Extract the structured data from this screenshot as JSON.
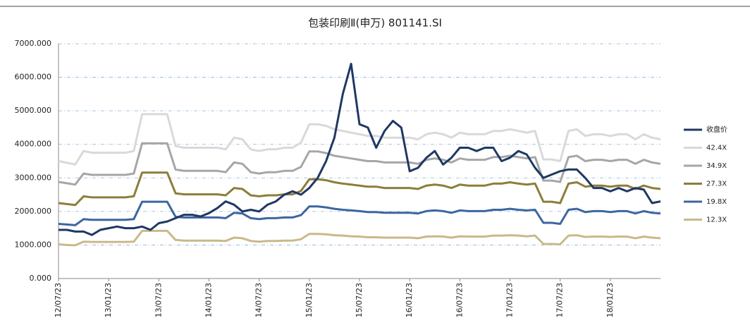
{
  "chart_data": {
    "type": "line",
    "title": "包装印刷Ⅱ(申万) 801141.SI",
    "x": [
      "12/07/23",
      "12/08/23",
      "12/09/23",
      "12/10/23",
      "12/11/23",
      "12/12/23",
      "13/01/23",
      "13/02/23",
      "13/03/23",
      "13/04/23",
      "13/05/23",
      "13/06/23",
      "13/07/23",
      "13/08/23",
      "13/09/23",
      "13/10/23",
      "13/11/23",
      "13/12/23",
      "14/01/23",
      "14/02/23",
      "14/03/23",
      "14/04/23",
      "14/05/23",
      "14/06/23",
      "14/07/23",
      "14/08/23",
      "14/09/23",
      "14/10/23",
      "14/11/23",
      "14/12/23",
      "15/01/23",
      "15/02/23",
      "15/03/23",
      "15/04/23",
      "15/05/23",
      "15/06/23",
      "15/07/23",
      "15/08/23",
      "15/09/23",
      "15/10/23",
      "15/11/23",
      "15/12/23",
      "16/01/23",
      "16/02/23",
      "16/03/23",
      "16/04/23",
      "16/05/23",
      "16/06/23",
      "16/07/23",
      "16/08/23",
      "16/09/23",
      "16/10/23",
      "16/11/23",
      "16/12/23",
      "17/01/23",
      "17/02/23",
      "17/03/23",
      "17/04/23",
      "17/05/23",
      "17/06/23",
      "17/07/23",
      "17/08/23",
      "17/09/23",
      "17/10/23",
      "17/11/23",
      "17/12/23",
      "18/01/23",
      "18/02/23",
      "18/03/23",
      "18/04/23",
      "18/05/23",
      "18/06/23",
      "18/07/23"
    ],
    "xlim": [
      "12/07/23",
      "18/07/23"
    ],
    "xticks": [
      "12/07/23",
      "13/01/23",
      "13/07/23",
      "14/01/23",
      "14/07/23",
      "15/01/23",
      "15/07/23",
      "16/01/23",
      "16/07/23",
      "17/01/23",
      "17/07/23",
      "18/01/23"
    ],
    "ylim": [
      0,
      7000
    ],
    "yticks": [
      {
        "value": 0,
        "label": "0.000"
      },
      {
        "value": 1000,
        "label": "1000.000"
      },
      {
        "value": 2000,
        "label": "2000.000"
      },
      {
        "value": 3000,
        "label": "3000.000"
      },
      {
        "value": 4000,
        "label": "4000.000"
      },
      {
        "value": 5000,
        "label": "5000.000"
      },
      {
        "value": 6000,
        "label": "6000.000"
      },
      {
        "value": 7000,
        "label": "7000.000"
      }
    ],
    "grid": true,
    "legend": "right",
    "series": [
      {
        "name": "收盘价",
        "color": "#1f3864",
        "values": [
          1450,
          1450,
          1400,
          1400,
          1300,
          1450,
          1500,
          1550,
          1500,
          1500,
          1550,
          1450,
          1650,
          1700,
          1800,
          1900,
          1900,
          1850,
          1950,
          2100,
          2300,
          2200,
          2000,
          2050,
          2000,
          2200,
          2300,
          2500,
          2600,
          2500,
          2700,
          3000,
          3500,
          4200,
          5500,
          6400,
          4600,
          4500,
          3900,
          4400,
          4700,
          4500,
          3200,
          3300,
          3600,
          3800,
          3400,
          3600,
          3900,
          3900,
          3800,
          3900,
          3900,
          3500,
          3600,
          3800,
          3700,
          3300,
          3000,
          3100,
          3200,
          3250,
          3250,
          3000,
          2700,
          2700,
          2600,
          2700,
          2600,
          2700,
          2650,
          2250,
          2300
        ]
      },
      {
        "name": "42.4X",
        "color": "#d9d9d9",
        "values": [
          3500,
          3450,
          3400,
          3800,
          3750,
          3750,
          3750,
          3750,
          3750,
          3800,
          4900,
          4900,
          4900,
          4900,
          3950,
          3900,
          3900,
          3900,
          3900,
          3900,
          3850,
          4200,
          4150,
          3850,
          3800,
          3850,
          3850,
          3900,
          3900,
          4050,
          4600,
          4600,
          4550,
          4450,
          4400,
          4350,
          4300,
          4250,
          4250,
          4200,
          4200,
          4200,
          4200,
          4150,
          4300,
          4350,
          4300,
          4200,
          4350,
          4300,
          4300,
          4300,
          4400,
          4400,
          4450,
          4400,
          4350,
          4400,
          3550,
          3550,
          3500,
          4400,
          4450,
          4250,
          4300,
          4300,
          4250,
          4300,
          4300,
          4150,
          4300,
          4200,
          4150
        ]
      },
      {
        "name": "34.9X",
        "color": "#a6a6a6",
        "values": [
          2880,
          2840,
          2800,
          3130,
          3090,
          3090,
          3090,
          3090,
          3090,
          3130,
          4030,
          4030,
          4030,
          4030,
          3250,
          3210,
          3210,
          3210,
          3210,
          3210,
          3170,
          3460,
          3420,
          3170,
          3130,
          3170,
          3170,
          3210,
          3210,
          3330,
          3790,
          3790,
          3740,
          3660,
          3620,
          3580,
          3540,
          3500,
          3500,
          3460,
          3460,
          3460,
          3460,
          3420,
          3540,
          3580,
          3540,
          3460,
          3580,
          3540,
          3540,
          3540,
          3620,
          3620,
          3660,
          3620,
          3580,
          3620,
          2920,
          2920,
          2880,
          3620,
          3660,
          3500,
          3540,
          3540,
          3500,
          3540,
          3540,
          3420,
          3540,
          3460,
          3420
        ]
      },
      {
        "name": "27.3X",
        "color": "#8c7e3a",
        "values": [
          2250,
          2220,
          2190,
          2450,
          2420,
          2420,
          2420,
          2420,
          2420,
          2450,
          3160,
          3160,
          3160,
          3160,
          2540,
          2510,
          2510,
          2510,
          2510,
          2510,
          2480,
          2700,
          2670,
          2480,
          2450,
          2480,
          2480,
          2510,
          2510,
          2610,
          2960,
          2960,
          2930,
          2870,
          2830,
          2800,
          2770,
          2740,
          2740,
          2700,
          2700,
          2700,
          2700,
          2670,
          2770,
          2800,
          2770,
          2700,
          2800,
          2770,
          2770,
          2770,
          2830,
          2830,
          2870,
          2830,
          2800,
          2830,
          2290,
          2290,
          2250,
          2830,
          2870,
          2740,
          2770,
          2770,
          2740,
          2770,
          2770,
          2670,
          2770,
          2700,
          2670
        ]
      },
      {
        "name": "19.8X",
        "color": "#3d66a0",
        "values": [
          1630,
          1610,
          1590,
          1770,
          1750,
          1750,
          1750,
          1750,
          1750,
          1770,
          2290,
          2290,
          2290,
          2290,
          1840,
          1820,
          1820,
          1820,
          1820,
          1820,
          1800,
          1960,
          1940,
          1800,
          1770,
          1800,
          1800,
          1820,
          1820,
          1890,
          2150,
          2150,
          2120,
          2080,
          2050,
          2030,
          2010,
          1980,
          1980,
          1960,
          1960,
          1960,
          1960,
          1940,
          2010,
          2030,
          2010,
          1960,
          2030,
          2010,
          2010,
          2010,
          2050,
          2050,
          2080,
          2050,
          2030,
          2050,
          1660,
          1660,
          1630,
          2050,
          2080,
          1980,
          2010,
          2010,
          1980,
          2010,
          2010,
          1940,
          2010,
          1960,
          1940
        ]
      },
      {
        "name": "12.3X",
        "color": "#c9b98a",
        "values": [
          1020,
          1000,
          990,
          1100,
          1090,
          1090,
          1090,
          1090,
          1090,
          1100,
          1420,
          1420,
          1420,
          1420,
          1150,
          1130,
          1130,
          1130,
          1130,
          1130,
          1120,
          1220,
          1200,
          1120,
          1100,
          1120,
          1120,
          1130,
          1130,
          1170,
          1330,
          1330,
          1320,
          1290,
          1280,
          1260,
          1250,
          1230,
          1230,
          1220,
          1220,
          1220,
          1220,
          1200,
          1250,
          1260,
          1250,
          1220,
          1260,
          1250,
          1250,
          1250,
          1280,
          1280,
          1290,
          1280,
          1260,
          1280,
          1030,
          1030,
          1020,
          1280,
          1290,
          1240,
          1250,
          1250,
          1240,
          1250,
          1250,
          1200,
          1250,
          1220,
          1200
        ]
      }
    ]
  }
}
